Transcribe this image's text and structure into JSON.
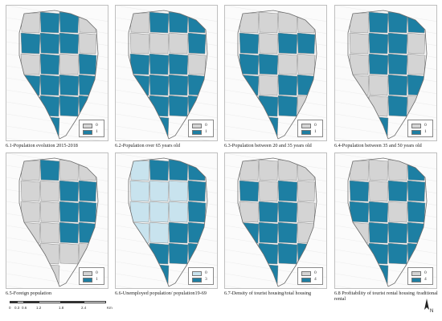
{
  "colors": {
    "fill_on": "#1d7fa3",
    "fill_off": "#d4d4d4",
    "fill_light": "#c8e3ee",
    "border": "#8c8c8c"
  },
  "panels": [
    {
      "caption": "6.1-Population evolution 2015-2018",
      "legend": [
        "0",
        "1"
      ]
    },
    {
      "caption": "6.2-Population over 65 years old",
      "legend": [
        "0",
        "1"
      ]
    },
    {
      "caption": "6.3-Population between 20 and 35 years old",
      "legend": [
        "0",
        "1"
      ]
    },
    {
      "caption": "6.4-Population between 35 and 50 years old",
      "legend": [
        "0",
        "1"
      ]
    },
    {
      "caption": "6.5-Foreign population",
      "legend": [
        "0",
        "1"
      ]
    },
    {
      "caption": "6.6-Unemployed population/ population19-69",
      "legend": [
        "0",
        "3"
      ]
    },
    {
      "caption": "6.7-Density of tourist housing/total housing",
      "legend": [
        "0",
        "4"
      ]
    },
    {
      "caption": "6.8 Profitability of tourist rental housing /traditional rental",
      "legend": [
        "0",
        "4"
      ]
    }
  ],
  "scale": {
    "labels": [
      "0",
      "0.3",
      "0.6",
      "1.2",
      "1.8",
      "2.4"
    ],
    "unit": "Km"
  },
  "north_label": "N"
}
